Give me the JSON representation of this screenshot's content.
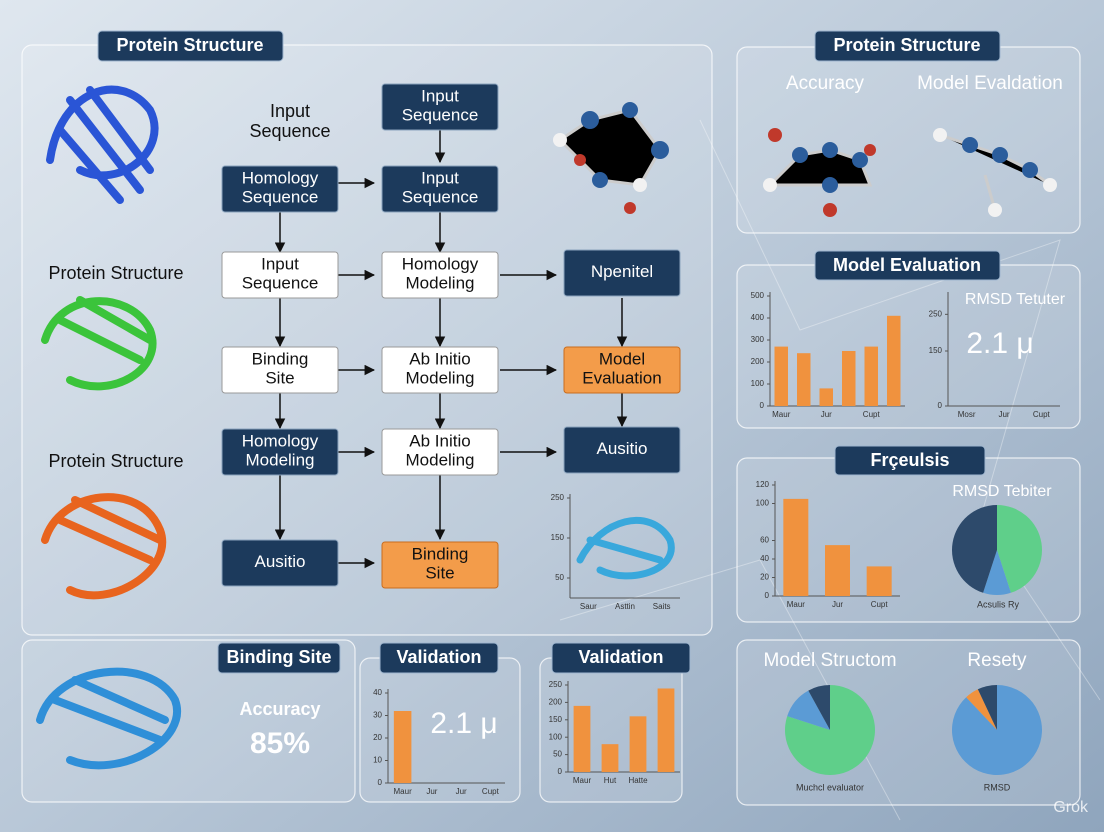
{
  "left_panel": {
    "title": "Protein Structure",
    "intro": [
      "Input",
      "Sequence"
    ],
    "labels": [
      "Protein Structure",
      "Protein Structure"
    ]
  },
  "flowchart": {
    "nodes": [
      {
        "label": [
          "Input",
          "Sequence"
        ]
      },
      {
        "label": [
          "Homology",
          "Sequence"
        ]
      },
      {
        "label": [
          "Input",
          "Sequence"
        ]
      },
      {
        "label": [
          "Input",
          "Sequence"
        ]
      },
      {
        "label": [
          "Homology",
          "Modeling"
        ]
      },
      {
        "label": [
          "Npenitel"
        ]
      },
      {
        "label": [
          "Binding",
          "Site"
        ]
      },
      {
        "label": [
          "Ab Initio",
          "Modeling"
        ]
      },
      {
        "label": [
          "Model",
          "Evaluation"
        ]
      },
      {
        "label": [
          "Homology",
          "Modeling"
        ]
      },
      {
        "label": [
          "Ab Initio",
          "Modeling"
        ]
      },
      {
        "label": [
          "Ausitio"
        ]
      },
      {
        "label": [
          "Ausitio"
        ]
      },
      {
        "label": [
          "Binding",
          "Site"
        ]
      }
    ]
  },
  "right_panel": {
    "title": "Protein Structure",
    "labels": [
      "Accuracy",
      "Model Evaldation"
    ]
  },
  "evaluation_panel": {
    "title": "Model Evaluation",
    "metric_label": "RMSD Tetuter",
    "metric": "2.1 μ"
  },
  "results_panel": {
    "title": "Frçeulsis",
    "pie_label": "RMSD Tebiter",
    "pie_caption": "Acsulis Ry"
  },
  "binding_panel": {
    "title": "Binding Site",
    "metric_label": "Accuracy",
    "metric": "85%"
  },
  "validation_panels": [
    {
      "title": "Validation",
      "metric": "2.1 μ"
    },
    {
      "title": "Validation"
    }
  ],
  "summary_panel": {
    "labels": [
      "Model Structom",
      "Resety"
    ],
    "captions": [
      "Muchcl evaluator",
      "RMSD"
    ]
  },
  "watermark": "Grok",
  "chart_data": [
    {
      "type": "bar",
      "categories": [
        "Maur",
        null,
        "Jur",
        null,
        "Cupt",
        null
      ],
      "values": [
        270,
        240,
        80,
        250,
        270,
        410
      ],
      "color": "#f0923e",
      "ylim": [
        0,
        500
      ],
      "yticks": [
        0,
        100,
        200,
        300,
        400,
        500
      ]
    },
    {
      "type": "axis",
      "categories": [
        "Mosr",
        "Jur",
        "Cupt"
      ],
      "ylim": [
        0,
        300
      ],
      "yticks": [
        0,
        150,
        250
      ]
    },
    {
      "type": "bar",
      "categories": [
        "Maur",
        "Jur",
        "Cupt"
      ],
      "values": [
        105,
        55,
        32
      ],
      "color": "#f0923e",
      "ylim": [
        0,
        120
      ],
      "yticks": [
        0,
        20,
        40,
        60,
        100,
        120
      ]
    },
    {
      "type": "pie",
      "values": [
        45,
        10,
        45
      ],
      "colors": [
        "#5fcf8a",
        "#5b9bd5",
        "#2d4a6b"
      ]
    },
    {
      "type": "axis",
      "categories": [
        "Saur",
        "Asttin",
        "Saits"
      ],
      "ylim": [
        0,
        250
      ],
      "yticks": [
        50,
        150,
        250
      ]
    },
    {
      "type": "bar",
      "categories": [
        "Maur",
        "Jur",
        "Jur",
        "Cupt"
      ],
      "values": [
        32,
        null,
        null,
        null
      ],
      "color": "#f0923e",
      "ylim": [
        0,
        40
      ],
      "yticks": [
        0,
        10,
        20,
        30,
        40
      ]
    },
    {
      "type": "bar",
      "categories": [
        "Maur",
        "Hut",
        "Hatte",
        null
      ],
      "values": [
        190,
        80,
        160,
        240
      ],
      "color": "#f0923e",
      "ylim": [
        0,
        250
      ],
      "yticks": [
        0,
        50,
        100,
        150,
        200,
        250
      ]
    },
    {
      "type": "pie",
      "values": [
        80,
        12,
        8
      ],
      "colors": [
        "#5fcf8a",
        "#5b9bd5",
        "#2d4a6b"
      ]
    },
    {
      "type": "pie",
      "values": [
        88,
        5,
        7
      ],
      "colors": [
        "#5b9bd5",
        "#f0923e",
        "#2d4a6b"
      ]
    }
  ]
}
